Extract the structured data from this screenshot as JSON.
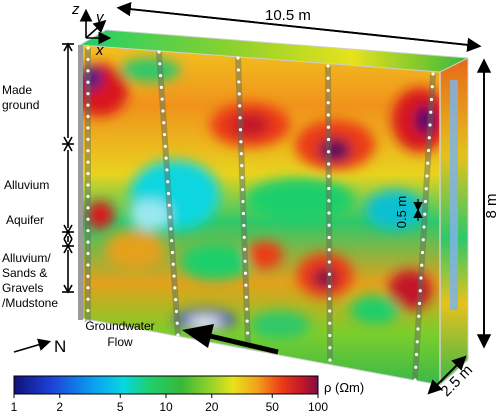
{
  "axes": {
    "z": "z",
    "y": "y",
    "x": "x"
  },
  "dimensions": {
    "length": "10.5 m",
    "height": "8 m",
    "depth": "2.5 m",
    "spacing": "0.5 m"
  },
  "layers": [
    {
      "line1": "Made",
      "line2": "ground"
    },
    {
      "line1": "Alluvium"
    },
    {
      "line1": "Aquifer"
    },
    {
      "line1": "Alluvium/",
      "line2": "Sands &",
      "line3": "Gravels",
      "line4": "/Mudstone"
    }
  ],
  "flow": {
    "line1": "Groundwater",
    "line2": "Flow"
  },
  "north": "N",
  "colorbar": {
    "label": "ρ (Ωm)",
    "ticks": [
      "1",
      "2",
      "5",
      "10",
      "20",
      "50",
      "100"
    ],
    "tick_values": [
      1,
      2,
      5,
      10,
      20,
      50,
      100
    ],
    "scale": "log",
    "colors": [
      "#10127a",
      "#1e3fd6",
      "#0a9ff0",
      "#08d6e0",
      "#1fcf6a",
      "#38b83a",
      "#8ed12b",
      "#e7e21c",
      "#f4a21a",
      "#ec3b16",
      "#c2152a",
      "#7d0f46"
    ]
  }
}
